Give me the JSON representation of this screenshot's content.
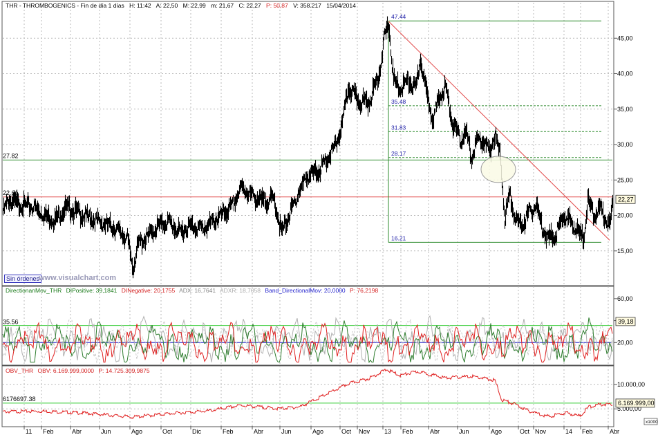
{
  "header": {
    "price": {
      "symbol": "THR - THROMBOGENICS - Fin de día 1 días",
      "hour": "H: 11:42",
      "open": "A: 22,50",
      "max": "M: 22,99",
      "min": "m: 21,67",
      "close": "C: 22,27",
      "pct": "P: 50,87",
      "volume": "V: 358.217",
      "date": "15/04/2014"
    },
    "dmi": {
      "name": "DirectionanMov_THR",
      "dip": "DIPositive: 39,1841",
      "din": "DINegative: 20,1755",
      "adx": "ADX: 16,7641",
      "adxr": "ADXR: 18,7058",
      "band": "Band_DirectionalMov: 20,0000",
      "p": "P: 76,2198"
    },
    "obv": {
      "name": "OBV_THR",
      "obv": "OBV: 6.169.999,0000",
      "p": "P: 14.725.309,9875"
    }
  },
  "ui": {
    "sin_ordenes": "Sin órdenes",
    "watermark": "www.visualchart.com",
    "obv_scale": "x1000"
  },
  "colors": {
    "price": "#000000",
    "fib": "#2e8b2e",
    "trendline": "#e24a4a",
    "support": "#e24a4a",
    "dip": "#2e7d2e",
    "din": "#e02020",
    "adx": "#b0b0b0",
    "adxr": "#cccccc",
    "band": "#2222cc",
    "obv": "#e02020",
    "obv_ref": "#33cc33"
  },
  "chart_data": [
    {
      "type": "candlestick",
      "title": "THR - THROMBOGENICS",
      "y_ticks": [
        "15,00",
        "20,00",
        "25,00",
        "30,00",
        "35,00",
        "40,00",
        "45,00"
      ],
      "ylim": [
        10.2,
        50
      ],
      "last_value": "22,27",
      "x_ticks": [
        "11",
        "Feb",
        "Abr",
        "Jun",
        "Ago",
        "Oct",
        "Dic",
        "Feb",
        "Abr",
        "Jun",
        "Ago",
        "Oct",
        "Nov",
        "13",
        "Feb",
        "Abr",
        "Jun",
        "Ago",
        "Oct",
        "Nov",
        "14",
        "Feb",
        "Abr"
      ],
      "series_close": [
        {
          "x": 0,
          "y": 21.0
        },
        {
          "x": 8,
          "y": 22.6
        },
        {
          "x": 18,
          "y": 22.2
        },
        {
          "x": 30,
          "y": 21.9
        },
        {
          "x": 45,
          "y": 21.6
        },
        {
          "x": 60,
          "y": 20.5
        },
        {
          "x": 75,
          "y": 19.8
        },
        {
          "x": 90,
          "y": 21.5
        },
        {
          "x": 102,
          "y": 21.2
        },
        {
          "x": 120,
          "y": 20.3
        },
        {
          "x": 140,
          "y": 19.5
        },
        {
          "x": 160,
          "y": 18.8
        },
        {
          "x": 180,
          "y": 17.2
        },
        {
          "x": 188,
          "y": 13.0
        },
        {
          "x": 196,
          "y": 16.5
        },
        {
          "x": 210,
          "y": 17.5
        },
        {
          "x": 225,
          "y": 19.0
        },
        {
          "x": 240,
          "y": 19.6
        },
        {
          "x": 255,
          "y": 18.0
        },
        {
          "x": 270,
          "y": 19.0
        },
        {
          "x": 290,
          "y": 18.6
        },
        {
          "x": 315,
          "y": 20.4
        },
        {
          "x": 330,
          "y": 21.5
        },
        {
          "x": 345,
          "y": 24.4
        },
        {
          "x": 360,
          "y": 23.3
        },
        {
          "x": 375,
          "y": 22.4
        },
        {
          "x": 392,
          "y": 22.8
        },
        {
          "x": 403,
          "y": 18.0
        },
        {
          "x": 415,
          "y": 20.7
        },
        {
          "x": 430,
          "y": 24.2
        },
        {
          "x": 440,
          "y": 26.0
        },
        {
          "x": 455,
          "y": 26.6
        },
        {
          "x": 470,
          "y": 28.4
        },
        {
          "x": 482,
          "y": 30.5
        },
        {
          "x": 490,
          "y": 33.0
        },
        {
          "x": 500,
          "y": 38.5
        },
        {
          "x": 515,
          "y": 36.5
        },
        {
          "x": 530,
          "y": 36.5
        },
        {
          "x": 545,
          "y": 40.8
        },
        {
          "x": 552,
          "y": 45.6
        },
        {
          "x": 558,
          "y": 47.4
        },
        {
          "x": 565,
          "y": 39.5
        },
        {
          "x": 575,
          "y": 38.3
        },
        {
          "x": 585,
          "y": 39.5
        },
        {
          "x": 597,
          "y": 38.2
        },
        {
          "x": 604,
          "y": 42.7
        },
        {
          "x": 612,
          "y": 38.0
        },
        {
          "x": 622,
          "y": 34.2
        },
        {
          "x": 632,
          "y": 37.0
        },
        {
          "x": 640,
          "y": 38.8
        },
        {
          "x": 650,
          "y": 33.5
        },
        {
          "x": 662,
          "y": 31.0
        },
        {
          "x": 670,
          "y": 32.2
        },
        {
          "x": 678,
          "y": 28.5
        },
        {
          "x": 686,
          "y": 31.2
        },
        {
          "x": 696,
          "y": 30.8
        },
        {
          "x": 704,
          "y": 29.3
        },
        {
          "x": 712,
          "y": 32.0
        },
        {
          "x": 720,
          "y": 28.3
        },
        {
          "x": 726,
          "y": 20.0
        },
        {
          "x": 733,
          "y": 23.5
        },
        {
          "x": 742,
          "y": 19.5
        },
        {
          "x": 752,
          "y": 19.2
        },
        {
          "x": 760,
          "y": 20.8
        },
        {
          "x": 772,
          "y": 21.8
        },
        {
          "x": 780,
          "y": 18.8
        },
        {
          "x": 790,
          "y": 17.2
        },
        {
          "x": 800,
          "y": 17.8
        },
        {
          "x": 812,
          "y": 20.5
        },
        {
          "x": 822,
          "y": 19.5
        },
        {
          "x": 832,
          "y": 18.2
        },
        {
          "x": 840,
          "y": 17.2
        },
        {
          "x": 846,
          "y": 22.5
        },
        {
          "x": 855,
          "y": 20.5
        },
        {
          "x": 864,
          "y": 21.5
        },
        {
          "x": 872,
          "y": 20.0
        },
        {
          "x": 878,
          "y": 19.0
        },
        {
          "x": 882,
          "y": 22.3
        }
      ],
      "fib_levels": [
        {
          "label": "47.44",
          "value": 47.44
        },
        {
          "label": "35.48",
          "value": 35.48
        },
        {
          "label": "31.83",
          "value": 31.83
        },
        {
          "label": "28.17",
          "value": 28.17
        },
        {
          "label": "16.21",
          "value": 16.21
        }
      ],
      "horizontal_levels": [
        {
          "label": "27.82",
          "value": 27.82
        },
        {
          "label": "22.61",
          "value": 22.61
        }
      ],
      "trendline": {
        "x": [
          558,
          878
        ],
        "y": [
          47.4,
          16.5
        ]
      }
    },
    {
      "type": "line",
      "title": "DirectionanMov_THR",
      "y_ticks": [
        "20,00",
        "40,00",
        "60,00"
      ],
      "ylim": [
        0,
        70
      ],
      "last_value": "39,18",
      "level_label": "35.56",
      "levels": [
        35.56,
        20.0
      ]
    },
    {
      "type": "line",
      "title": "OBV_THR",
      "y_ticks": [
        "5.000,00",
        "10.000,00"
      ],
      "ylim": [
        1500,
        13500
      ],
      "last_value": "6.169.999,00",
      "level_label": "6176697.38",
      "ref_level": 6177,
      "unit_label": "x1000",
      "series_obv": [
        {
          "x": 0,
          "y": 4600
        },
        {
          "x": 60,
          "y": 4700
        },
        {
          "x": 120,
          "y": 4300
        },
        {
          "x": 188,
          "y": 3500
        },
        {
          "x": 240,
          "y": 4200
        },
        {
          "x": 300,
          "y": 4800
        },
        {
          "x": 345,
          "y": 5900
        },
        {
          "x": 400,
          "y": 5200
        },
        {
          "x": 430,
          "y": 5600
        },
        {
          "x": 460,
          "y": 7600
        },
        {
          "x": 500,
          "y": 10300
        },
        {
          "x": 530,
          "y": 11400
        },
        {
          "x": 555,
          "y": 13200
        },
        {
          "x": 575,
          "y": 12000
        },
        {
          "x": 600,
          "y": 12800
        },
        {
          "x": 640,
          "y": 11500
        },
        {
          "x": 680,
          "y": 11800
        },
        {
          "x": 712,
          "y": 11000
        },
        {
          "x": 722,
          "y": 7000
        },
        {
          "x": 740,
          "y": 6200
        },
        {
          "x": 760,
          "y": 4800
        },
        {
          "x": 790,
          "y": 3600
        },
        {
          "x": 815,
          "y": 4400
        },
        {
          "x": 835,
          "y": 3700
        },
        {
          "x": 848,
          "y": 5600
        },
        {
          "x": 865,
          "y": 6100
        },
        {
          "x": 882,
          "y": 6170
        }
      ]
    }
  ]
}
